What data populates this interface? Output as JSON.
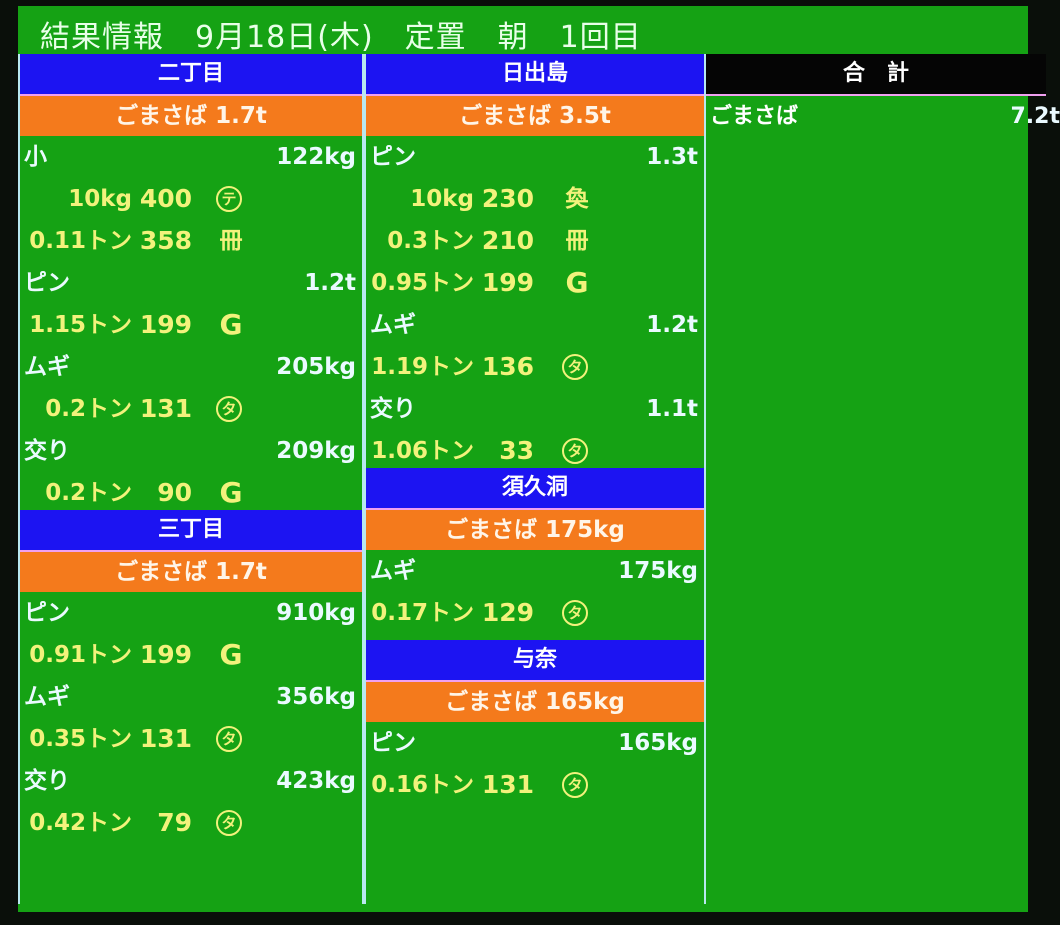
{
  "title": "結果情報　9月18日(木)　定置　朝　1回目",
  "columns": [
    {
      "sections": [
        {
          "header": "二丁目",
          "subheader": "ごまさば 1.7t",
          "items": [
            {
              "name": "小",
              "weight": "122kg",
              "lots": [
                {
                  "qty": "10kg",
                  "price": "400",
                  "mark": "テ"
                },
                {
                  "qty": "0.11トン",
                  "price": "358",
                  "mark": "冊"
                }
              ]
            },
            {
              "name": "ピン",
              "weight": "1.2t",
              "lots": [
                {
                  "qty": "1.15トン",
                  "price": "199",
                  "mark": "G"
                }
              ]
            },
            {
              "name": "ムギ",
              "weight": "205kg",
              "lots": [
                {
                  "qty": "0.2トン",
                  "price": "131",
                  "mark": "タ"
                }
              ]
            },
            {
              "name": "交り",
              "weight": "209kg",
              "lots": [
                {
                  "qty": "0.2トン",
                  "price": "90",
                  "mark": "G"
                }
              ]
            }
          ]
        },
        {
          "header": "三丁目",
          "subheader": "ごまさば 1.7t",
          "items": [
            {
              "name": "ピン",
              "weight": "910kg",
              "lots": [
                {
                  "qty": "0.91トン",
                  "price": "199",
                  "mark": "G"
                }
              ]
            },
            {
              "name": "ムギ",
              "weight": "356kg",
              "lots": [
                {
                  "qty": "0.35トン",
                  "price": "131",
                  "mark": "タ"
                }
              ]
            },
            {
              "name": "交り",
              "weight": "423kg",
              "lots": [
                {
                  "qty": "0.42トン",
                  "price": "79",
                  "mark": "タ"
                }
              ]
            }
          ]
        }
      ]
    },
    {
      "sections": [
        {
          "header": "日出島",
          "subheader": "ごまさば 3.5t",
          "items": [
            {
              "name": "ピン",
              "weight": "1.3t",
              "lots": [
                {
                  "qty": "10kg",
                  "price": "230",
                  "mark": "奐"
                },
                {
                  "qty": "0.3トン",
                  "price": "210",
                  "mark": "冊"
                },
                {
                  "qty": "0.95トン",
                  "price": "199",
                  "mark": "G"
                }
              ]
            },
            {
              "name": "ムギ",
              "weight": "1.2t",
              "lots": [
                {
                  "qty": "1.19トン",
                  "price": "136",
                  "mark": "タ"
                }
              ]
            },
            {
              "name": "交り",
              "weight": "1.1t",
              "lots": [
                {
                  "qty": "1.06トン",
                  "price": "33",
                  "mark": "タ"
                }
              ]
            }
          ]
        },
        {
          "header": "須久洞",
          "subheader": "ごまさば 175kg",
          "items": [
            {
              "name": "ムギ",
              "weight": "175kg",
              "lots": [
                {
                  "qty": "0.17トン",
                  "price": "129",
                  "mark": "タ"
                }
              ]
            }
          ]
        },
        {
          "header": "与奈",
          "subheader": "ごまさば 165kg",
          "items": [
            {
              "name": "ピン",
              "weight": "165kg",
              "lots": [
                {
                  "qty": "0.16トン",
                  "price": "131",
                  "mark": "タ"
                }
              ]
            }
          ]
        }
      ]
    }
  ],
  "total": {
    "header": "合　計",
    "rows": [
      {
        "name": "ごまさば",
        "weight": "7.2t"
      }
    ]
  },
  "colors": {
    "background": "#15a214",
    "header": "#1c14f2",
    "subheader": "#f47a1c",
    "lot_text": "#f2f27c"
  }
}
